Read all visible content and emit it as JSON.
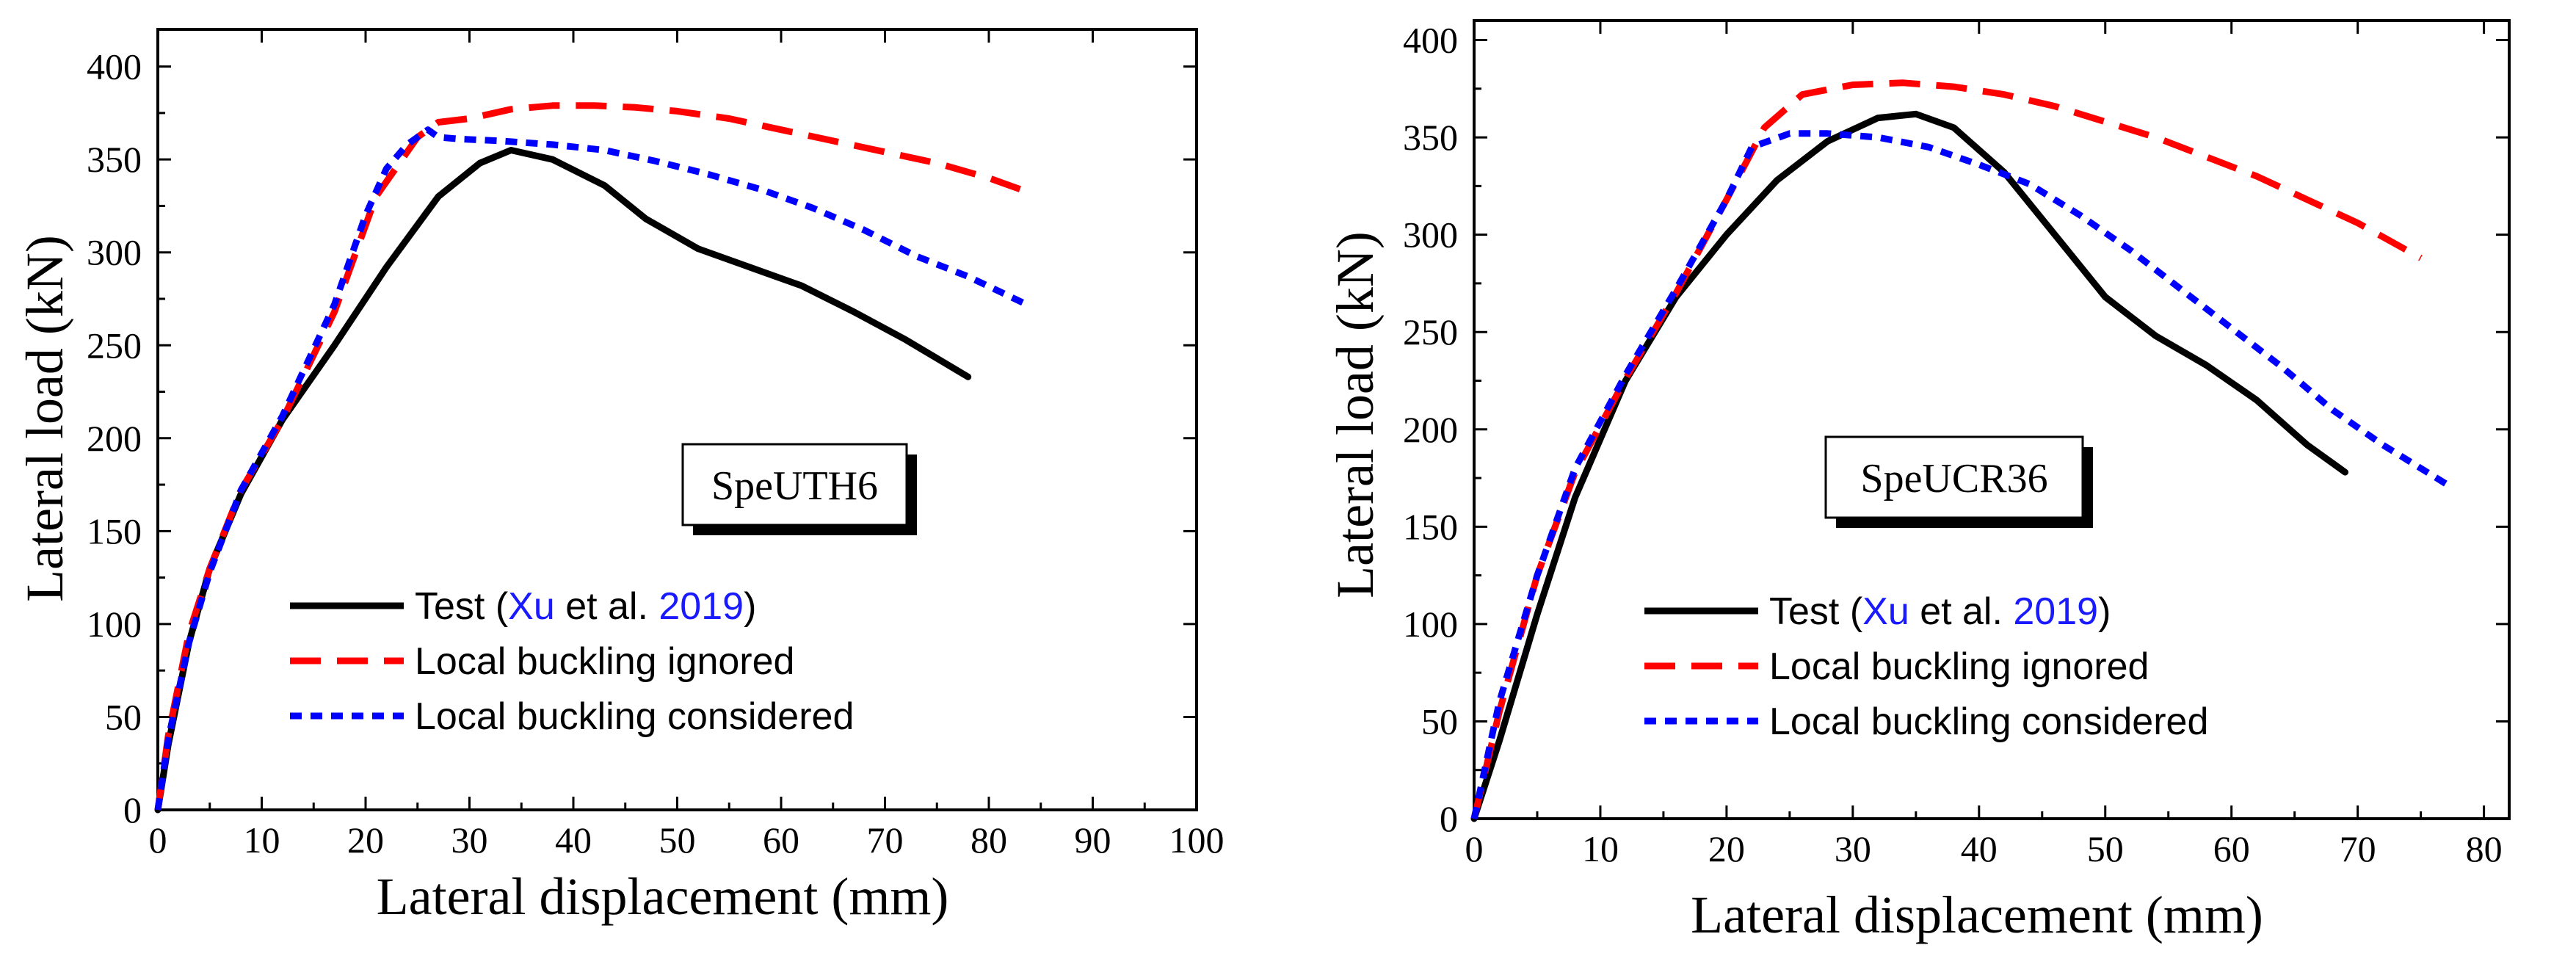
{
  "chart_data": [
    {
      "type": "line",
      "label": "SpeUTH6",
      "xlabel": "Lateral displacement (mm)",
      "ylabel": "Lateral load (kN)",
      "xlim": [
        0,
        100
      ],
      "ylim": [
        0,
        420
      ],
      "xticks": [
        "0",
        "10",
        "20",
        "30",
        "40",
        "50",
        "60",
        "70",
        "80",
        "90",
        "100"
      ],
      "yticks": [
        "0",
        "50",
        "100",
        "150",
        "200",
        "250",
        "300",
        "350",
        "400"
      ],
      "legend": {
        "test_prefix": "Test (",
        "test_author": "Xu",
        "test_etal": " et al. ",
        "test_year": "2019",
        "test_suffix": ")",
        "ignored": "Local buckling ignored",
        "considered": "Local buckling considered"
      },
      "series": [
        {
          "name": "Test",
          "color": "#000000",
          "style": "solid",
          "x": [
            0,
            1,
            3,
            5,
            8,
            12,
            17,
            22,
            27,
            31,
            34,
            38,
            43,
            47,
            52,
            57,
            62,
            67,
            72,
            78
          ],
          "y": [
            0,
            35,
            90,
            130,
            170,
            210,
            250,
            292,
            330,
            348,
            355,
            350,
            336,
            318,
            302,
            292,
            282,
            268,
            253,
            233
          ]
        },
        {
          "name": "Local buckling ignored",
          "color": "#ff0000",
          "style": "longdash",
          "x": [
            0,
            1,
            3,
            5,
            8,
            12,
            17,
            21,
            25,
            27,
            30,
            34,
            38,
            42,
            46,
            50,
            55,
            60,
            65,
            70,
            75,
            80,
            83
          ],
          "y": [
            0,
            40,
            95,
            130,
            172,
            210,
            268,
            330,
            362,
            370,
            372,
            377,
            379,
            379,
            378,
            376,
            372,
            366,
            360,
            354,
            348,
            340,
            334
          ]
        },
        {
          "name": "Local buckling considered",
          "color": "#0000ff",
          "style": "shortdash",
          "x": [
            0,
            1,
            3,
            5,
            8,
            12,
            17,
            20,
            22,
            24,
            26,
            27,
            29,
            33,
            38,
            43,
            48,
            53,
            58,
            63,
            68,
            73,
            78,
            84
          ],
          "y": [
            0,
            38,
            90,
            128,
            172,
            212,
            272,
            320,
            345,
            358,
            366,
            362,
            361,
            360,
            358,
            355,
            349,
            342,
            334,
            324,
            312,
            298,
            287,
            271
          ]
        }
      ]
    },
    {
      "type": "line",
      "label": "SpeUCR36",
      "xlabel": "Lateral displacement (mm)",
      "ylabel": "Lateral load (kN)",
      "xlim": [
        0,
        82
      ],
      "ylim": [
        0,
        410
      ],
      "xticks": [
        "0",
        "10",
        "20",
        "30",
        "40",
        "50",
        "60",
        "70",
        "80"
      ],
      "yticks": [
        "0",
        "50",
        "100",
        "150",
        "200",
        "250",
        "300",
        "350",
        "400"
      ],
      "legend": {
        "test_prefix": "Test (",
        "test_author": "Xu",
        "test_etal": " et al. ",
        "test_year": "2019",
        "test_suffix": ")",
        "ignored": "Local buckling ignored",
        "considered": "Local buckling considered"
      },
      "series": [
        {
          "name": "Test",
          "color": "#000000",
          "style": "solid",
          "x": [
            0,
            2,
            5,
            8,
            12,
            16,
            20,
            24,
            28,
            32,
            35,
            38,
            42,
            46,
            50,
            54,
            58,
            62,
            66,
            69
          ],
          "y": [
            0,
            40,
            105,
            165,
            225,
            268,
            300,
            328,
            348,
            360,
            362,
            355,
            332,
            300,
            268,
            248,
            233,
            215,
            192,
            178
          ]
        },
        {
          "name": "Local buckling ignored",
          "color": "#ff0000",
          "style": "longdash",
          "x": [
            0,
            2,
            5,
            8,
            12,
            16,
            20,
            23,
            26,
            30,
            34,
            38,
            42,
            46,
            50,
            54,
            58,
            62,
            66,
            70,
            75
          ],
          "y": [
            0,
            55,
            125,
            178,
            226,
            270,
            318,
            355,
            372,
            377,
            378,
            376,
            372,
            366,
            358,
            350,
            340,
            330,
            318,
            306,
            288
          ]
        },
        {
          "name": "Local buckling considered",
          "color": "#0000ff",
          "style": "shortdash",
          "x": [
            0,
            2,
            5,
            8,
            12,
            16,
            20,
            22,
            25,
            28,
            32,
            36,
            40,
            44,
            48,
            52,
            56,
            60,
            64,
            68,
            72,
            77
          ],
          "y": [
            0,
            60,
            125,
            180,
            228,
            272,
            318,
            345,
            352,
            352,
            350,
            345,
            336,
            326,
            310,
            292,
            272,
            252,
            232,
            210,
            192,
            172
          ]
        }
      ]
    }
  ]
}
